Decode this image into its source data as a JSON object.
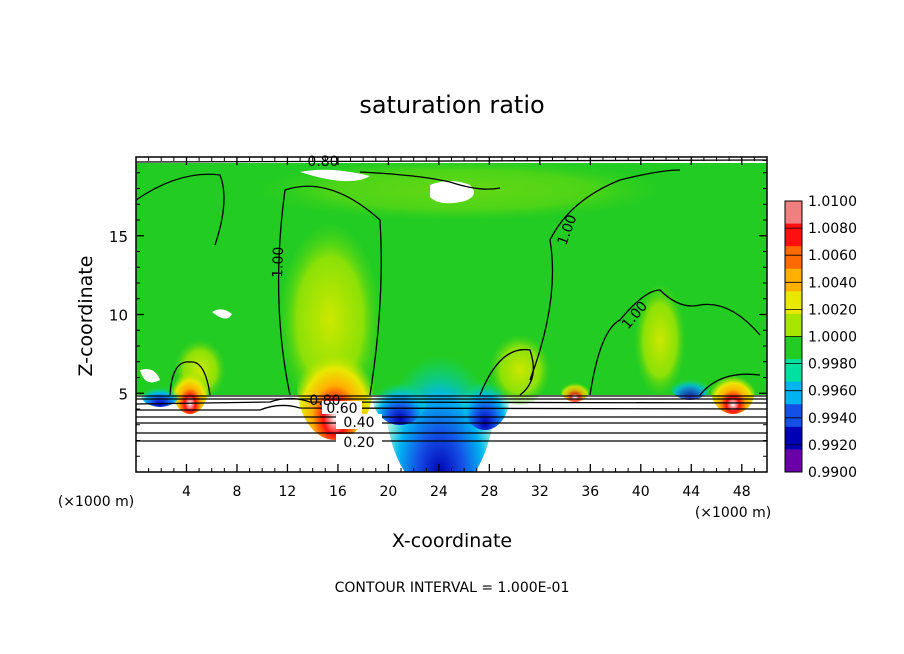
{
  "chart_data": {
    "type": "heatmap",
    "title": "saturation ratio",
    "xlabel": "X-coordinate",
    "ylabel": "Z-coordinate",
    "x_unit_left": "(×1000 m)",
    "x_unit_right": "(×1000 m)",
    "xlim": [
      0,
      50
    ],
    "ylim": [
      0,
      20
    ],
    "x_ticks": [
      4,
      8,
      12,
      16,
      20,
      24,
      28,
      32,
      36,
      40,
      44,
      48
    ],
    "x_tick_labels": [
      "4",
      "8",
      "12",
      "16",
      "20",
      "24",
      "28",
      "32",
      "36",
      "40",
      "44",
      "48"
    ],
    "y_ticks": [
      5,
      10,
      15
    ],
    "y_tick_labels": [
      "5",
      "10",
      "15"
    ],
    "colorbar": {
      "levels": [
        1.01,
        1.008,
        1.006,
        1.004,
        1.002,
        1.0,
        0.998,
        0.996,
        0.994,
        0.992,
        0.99
      ],
      "labels": [
        "1.0100",
        "1.0080",
        "1.0060",
        "1.0040",
        "1.0020",
        "1.0000",
        "0.9980",
        "0.9960",
        "0.9940",
        "0.9920",
        "0.9900"
      ],
      "colors": [
        "#f08080",
        "#ff1010",
        "#ff6a00",
        "#ffb000",
        "#e8e800",
        "#a6e600",
        "#22cc22",
        "#00e0a0",
        "#00b4f0",
        "#1450e6",
        "#0000b4",
        "#6a00a8"
      ]
    },
    "contour_labels": [
      {
        "text": "0.20",
        "x": 17.5,
        "y": 2.0
      },
      {
        "text": "0.40",
        "x": 17.5,
        "y": 3.0
      },
      {
        "text": "0.60",
        "x": 16.5,
        "y": 4.0
      },
      {
        "text": "0.80",
        "x": 14.5,
        "y": 4.6
      },
      {
        "text": "1.00",
        "x": 11.0,
        "y": 13.5
      },
      {
        "text": "1.00",
        "x": 33.5,
        "y": 15.5
      },
      {
        "text": "1.00",
        "x": 39.5,
        "y": 9.8
      },
      {
        "text": "0.80",
        "x": 14.0,
        "y": 19.4
      }
    ],
    "footer": "CONTOUR INTERVAL = 1.000E-01"
  }
}
